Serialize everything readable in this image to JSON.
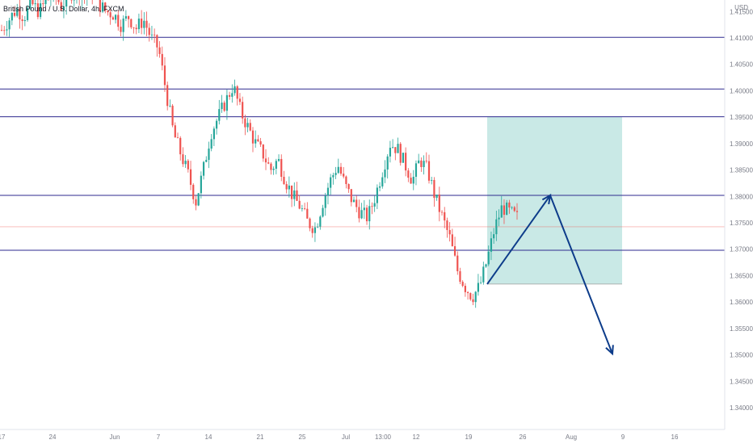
{
  "title": "British Pound / U.S. Dollar, 4h, FXCM",
  "currency": "USD",
  "colors": {
    "up": "#26a69a",
    "down": "#ef5350",
    "level_line": "#2e2a8f",
    "level_label_bg": "#1f1a6e",
    "target_label_bg": "#26a69a",
    "price_line": "#ef5350",
    "zone_fill": "#b2dfdb",
    "arrow": "#0d3c8a",
    "text": "#787b86"
  },
  "chart_data": {
    "type": "candlestick",
    "title": "British Pound / U.S. Dollar, 4h, FXCM",
    "y_axis": {
      "currency": "USD",
      "range": [
        1.3375,
        1.4205
      ],
      "ticks": [
        "1.34000",
        "1.34500",
        "1.35000",
        "1.35500",
        "1.36000",
        "1.36500",
        "1.37000",
        "1.37500",
        "1.38000",
        "1.38500",
        "1.39000",
        "1.39500",
        "1.40000",
        "1.40500",
        "1.41000",
        "1.41500"
      ]
    },
    "x_axis": {
      "ticks": [
        "17",
        "24",
        "Jun",
        "7",
        "14",
        "21",
        "25",
        "Jul",
        "13:00",
        "12",
        "19",
        "26",
        "Aug",
        "9",
        "16"
      ]
    },
    "horizontal_levels": [
      "1.41011",
      "1.40033",
      "1.39508",
      "1.38019",
      "1.36981"
    ],
    "current_price": "1.37424",
    "target_label": "1.39508",
    "stop_labels": [
      "1.36244",
      "1.36243"
    ],
    "price_path": [
      1.4115,
      1.4135,
      1.4155,
      1.414,
      1.4165,
      1.415,
      1.417,
      1.4185,
      1.416,
      1.418,
      1.4195,
      1.4175,
      1.419,
      1.4165,
      1.415,
      1.4145,
      1.4125,
      1.414,
      1.4118,
      1.4135,
      1.41,
      1.408,
      1.4,
      1.392,
      1.388,
      1.384,
      1.379,
      1.385,
      1.392,
      1.395,
      1.398,
      1.401,
      1.396,
      1.393,
      1.39,
      1.388,
      1.385,
      1.387,
      1.383,
      1.38,
      1.378,
      1.375,
      1.374,
      1.379,
      1.383,
      1.386,
      1.382,
      1.379,
      1.377,
      1.376,
      1.38,
      1.385,
      1.39,
      1.389,
      1.386,
      1.383,
      1.387,
      1.385,
      1.38,
      1.376,
      1.372,
      1.366,
      1.363,
      1.361,
      1.363,
      1.368,
      1.374,
      1.378,
      1.377,
      1.376
    ],
    "trade_zone": {
      "top": 1.39508,
      "bottom": 1.3634,
      "start_price": 1.3634
    },
    "projection": [
      1.3634,
      1.38019,
      1.3502
    ]
  }
}
